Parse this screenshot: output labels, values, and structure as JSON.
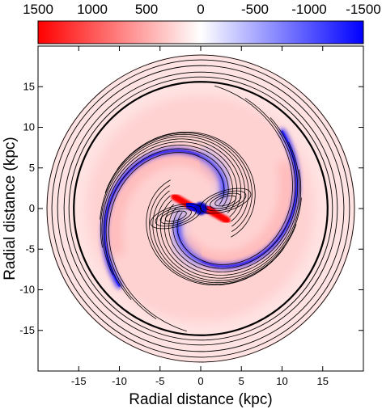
{
  "chart_data": {
    "type": "heatmap",
    "xlabel": "Radial distance (kpc)",
    "ylabel": "Radial distance (kpc)",
    "xlim": [
      -20,
      20
    ],
    "ylim": [
      -20,
      20
    ],
    "x_ticks": [
      -15,
      -10,
      -5,
      0,
      5,
      10,
      15
    ],
    "y_ticks": [
      -15,
      -10,
      -5,
      0,
      5,
      10,
      15
    ],
    "colorbar": {
      "range": [
        1500,
        -1500
      ],
      "tick_values": [
        1500,
        1000,
        500,
        0,
        -500,
        -1000,
        -1500
      ],
      "tick_labels": [
        "1500",
        "1000",
        "500",
        "0",
        "-500",
        "-1000",
        "-1500"
      ],
      "colors": {
        "positive": "#ff0000",
        "zero": "#ffffff",
        "negative": "#0000ff"
      }
    },
    "field": {
      "description_free": true,
      "outer_radius_kpc": 19,
      "bar_half_length_kpc": 3.5,
      "spiral_arms": 2,
      "arm_end_radius_kpc": 14
    }
  }
}
